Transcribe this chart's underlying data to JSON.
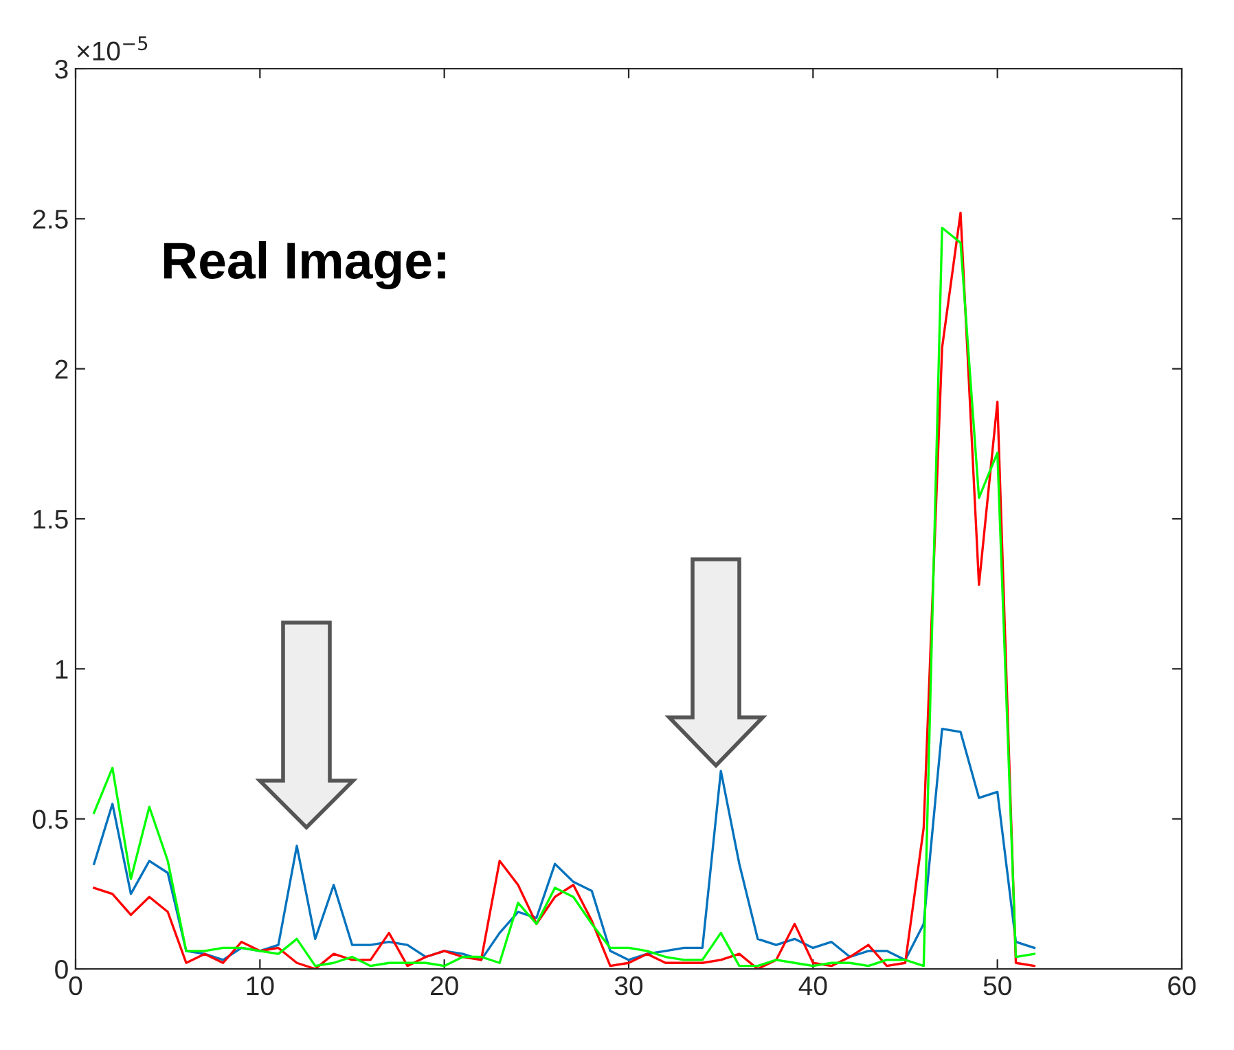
{
  "chart_data": {
    "type": "line",
    "x": [
      1,
      2,
      3,
      4,
      5,
      6,
      7,
      8,
      9,
      10,
      11,
      12,
      13,
      14,
      15,
      16,
      17,
      18,
      19,
      20,
      21,
      22,
      23,
      24,
      25,
      26,
      27,
      28,
      29,
      30,
      31,
      32,
      33,
      34,
      35,
      36,
      37,
      38,
      39,
      40,
      41,
      42,
      43,
      44,
      45,
      46,
      47,
      48,
      49,
      50,
      51,
      52
    ],
    "series": [
      {
        "color": "#0072bd",
        "values": [
          0.35,
          0.55,
          0.25,
          0.36,
          0.32,
          0.06,
          0.05,
          0.03,
          0.07,
          0.06,
          0.08,
          0.41,
          0.1,
          0.28,
          0.08,
          0.08,
          0.09,
          0.08,
          0.04,
          0.06,
          0.05,
          0.03,
          0.12,
          0.19,
          0.17,
          0.35,
          0.29,
          0.26,
          0.06,
          0.03,
          0.05,
          0.06,
          0.07,
          0.07,
          0.66,
          0.35,
          0.1,
          0.08,
          0.1,
          0.07,
          0.09,
          0.04,
          0.06,
          0.06,
          0.03,
          0.15,
          0.8,
          0.79,
          0.57,
          0.59,
          0.09,
          0.07
        ]
      },
      {
        "color": "#ff0000",
        "values": [
          0.27,
          0.25,
          0.18,
          0.24,
          0.19,
          0.02,
          0.05,
          0.02,
          0.09,
          0.06,
          0.07,
          0.02,
          0.0,
          0.05,
          0.03,
          0.03,
          0.12,
          0.01,
          0.04,
          0.06,
          0.04,
          0.03,
          0.36,
          0.28,
          0.15,
          0.24,
          0.28,
          0.16,
          0.01,
          0.02,
          0.05,
          0.02,
          0.02,
          0.02,
          0.03,
          0.05,
          0.0,
          0.03,
          0.15,
          0.02,
          0.01,
          0.04,
          0.08,
          0.01,
          0.02,
          0.47,
          2.07,
          2.52,
          1.28,
          1.89,
          0.02,
          0.01
        ]
      },
      {
        "color": "#00ff00",
        "values": [
          0.52,
          0.67,
          0.3,
          0.54,
          0.36,
          0.06,
          0.06,
          0.07,
          0.07,
          0.06,
          0.05,
          0.1,
          0.01,
          0.02,
          0.04,
          0.01,
          0.02,
          0.02,
          0.02,
          0.01,
          0.04,
          0.04,
          0.02,
          0.22,
          0.15,
          0.27,
          0.24,
          0.15,
          0.07,
          0.07,
          0.06,
          0.04,
          0.03,
          0.03,
          0.12,
          0.01,
          0.01,
          0.03,
          0.02,
          0.01,
          0.02,
          0.02,
          0.01,
          0.03,
          0.03,
          0.01,
          2.47,
          2.42,
          1.57,
          1.72,
          0.04,
          0.05
        ]
      }
    ],
    "xlim": [
      0,
      60
    ],
    "xticks": [
      0,
      10,
      20,
      30,
      40,
      50,
      60
    ],
    "ylim": [
      0,
      3
    ],
    "yticks": [
      0,
      0.5,
      1,
      1.5,
      2,
      2.5,
      3
    ],
    "annotations": [
      "×10$^{−5}$",
      "Real Image:"
    ],
    "grid": false,
    "legend": false,
    "marker": "none",
    "line_style": "solid"
  }
}
